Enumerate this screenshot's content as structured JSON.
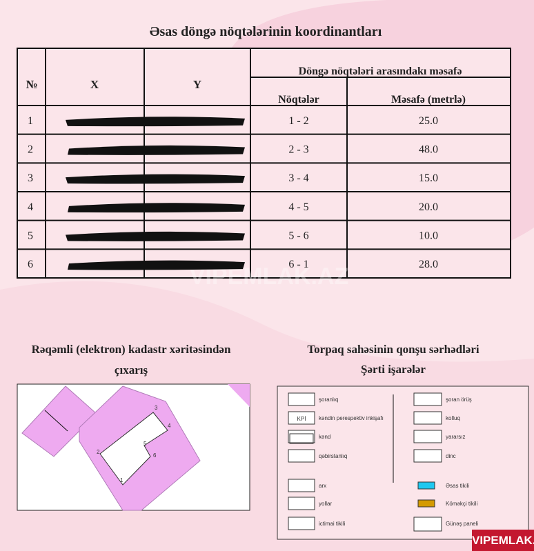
{
  "title": "Əsas döngə nöqtələrinin koordinantları",
  "table": {
    "headers": {
      "no": "№",
      "x": "X",
      "y": "Y",
      "group": "Döngə nöqtələri arasındakı məsafə",
      "points": "Nöqtələr",
      "distance": "Məsafə (metrlə)"
    },
    "rows": [
      [
        "1",
        "1 - 2",
        "25.0"
      ],
      [
        "2",
        "2 - 3",
        "48.0"
      ],
      [
        "3",
        "3 - 4",
        "15.0"
      ],
      [
        "4",
        "4 - 5",
        "20.0"
      ],
      [
        "5",
        "5 - 6",
        "10.0"
      ],
      [
        "6",
        "6 - 1",
        "28.0"
      ]
    ]
  },
  "map": {
    "title_lines": [
      "Rəqəmli (elektron) kadastr xəritəsindən",
      "çıxarış"
    ],
    "points": [
      "1",
      "2",
      "3",
      "4",
      "5",
      "6"
    ]
  },
  "legend": {
    "title_lines": [
      "Torpaq sahəsinin qonşu sərhədləri",
      "Şərti işarələr"
    ],
    "kpi_icon": "KPİ",
    "left": [
      "şoranlıq",
      "kəndin perespektiv inkişafı",
      "kənd",
      "qəbirstanlıq",
      "arx",
      "yollar",
      "ictimai tikili"
    ],
    "right": [
      "şoran örüş",
      "kolluq",
      "yararsız",
      "dinc",
      "Əsas tikili",
      "Köməkçi tikili",
      "Günəş paneli"
    ]
  },
  "watermark": "VIPEMLAK.AZ"
}
